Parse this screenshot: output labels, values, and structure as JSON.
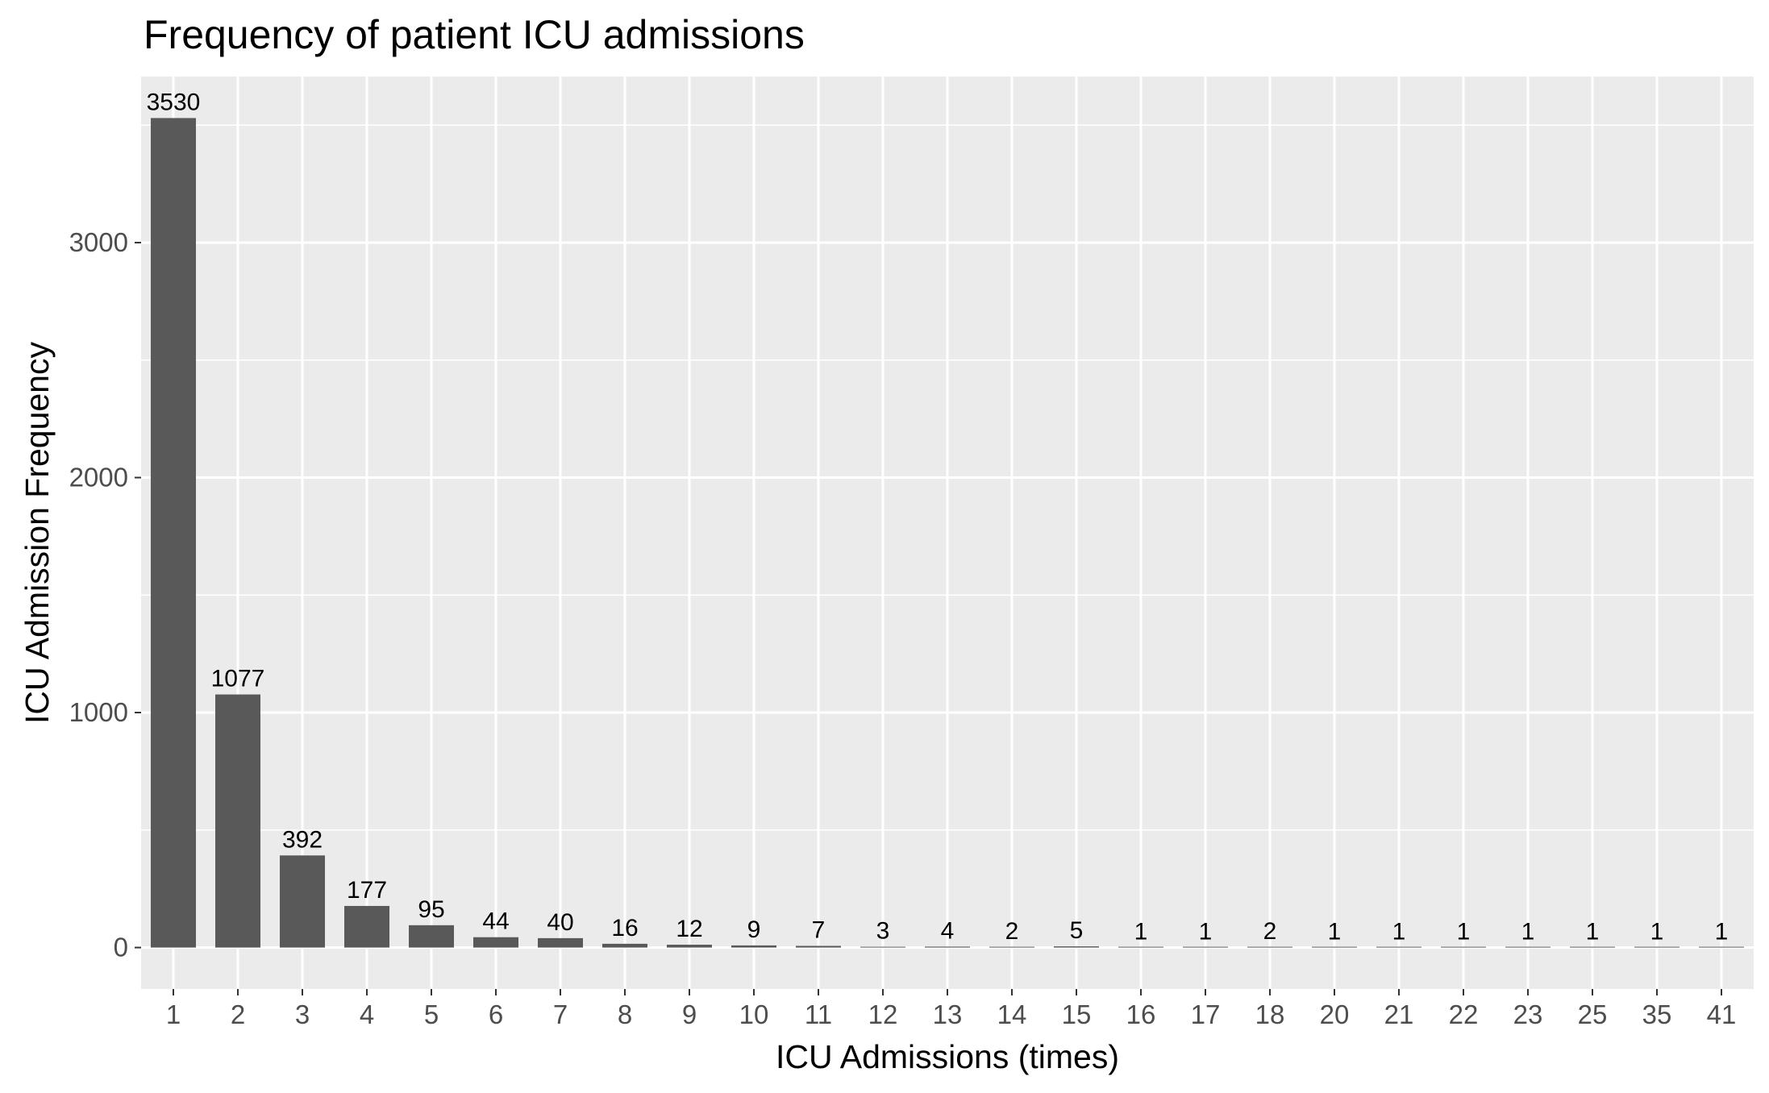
{
  "chart_data": {
    "type": "bar",
    "title": "Frequency of patient ICU admissions",
    "xlabel": "ICU Admissions (times)",
    "ylabel": "ICU Admission Frequency",
    "categories": [
      "1",
      "2",
      "3",
      "4",
      "5",
      "6",
      "7",
      "8",
      "9",
      "10",
      "11",
      "12",
      "13",
      "14",
      "15",
      "16",
      "17",
      "18",
      "20",
      "21",
      "22",
      "23",
      "25",
      "35",
      "41"
    ],
    "values": [
      3530,
      1077,
      392,
      177,
      95,
      44,
      40,
      16,
      12,
      9,
      7,
      3,
      4,
      2,
      5,
      1,
      1,
      2,
      1,
      1,
      1,
      1,
      1,
      1,
      1
    ],
    "data_labels": [
      "3530",
      "1077",
      "392",
      "177",
      "95",
      "44",
      "40",
      "16",
      "12",
      "9",
      "7",
      "3",
      "4",
      "2",
      "5",
      "1",
      "1",
      "2",
      "1",
      "1",
      "1",
      "1",
      "1",
      "1",
      "1"
    ],
    "yticks": [
      0,
      1000,
      2000,
      3000
    ],
    "ytick_labels": [
      "0",
      "1000",
      "2000",
      "3000"
    ],
    "ylim": [
      -176.5,
      3706.5
    ],
    "grid": true,
    "legend": "none",
    "colors": {
      "bar": "#595959",
      "panel_background": "#ebebeb",
      "grid_major": "#ffffff",
      "tick_label": "#4d4d4d",
      "tick_mark": "#333333",
      "text": "#000000"
    }
  }
}
